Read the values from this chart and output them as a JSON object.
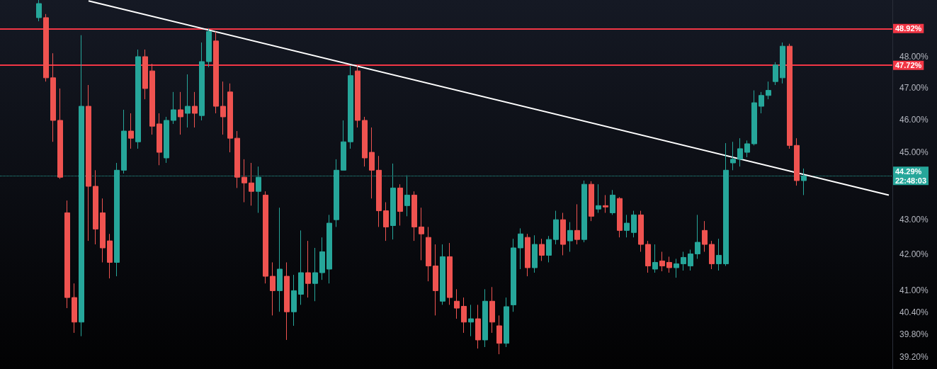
{
  "chart_data": {
    "type": "candlestick",
    "log": true,
    "tick_labels": "y",
    "grid": false,
    "categories": [
      null,
      null,
      null,
      null,
      null,
      null,
      null,
      null,
      null,
      null,
      null,
      null,
      null,
      null,
      null,
      null,
      null,
      null,
      null,
      null,
      null,
      null,
      null,
      null,
      null,
      null,
      null,
      null,
      null,
      null,
      null,
      null,
      null,
      null,
      null,
      null,
      null,
      null,
      null,
      null,
      null,
      null,
      null,
      null,
      null,
      null,
      null,
      null,
      null,
      null,
      null,
      null,
      null,
      null,
      null,
      null,
      null,
      null,
      null,
      null,
      null,
      null,
      null,
      null,
      null,
      null,
      null,
      null,
      null,
      null,
      null,
      null,
      null,
      null,
      null,
      null,
      null,
      null,
      null,
      null,
      null,
      null,
      null,
      null,
      null,
      null,
      null,
      null,
      null,
      null,
      null,
      null,
      null,
      null,
      null,
      null,
      null,
      null,
      null,
      null,
      null,
      null,
      null,
      null,
      null,
      null,
      null,
      null,
      null,
      null,
      null,
      null,
      null,
      null,
      null,
      null,
      null,
      null,
      null,
      null,
      null,
      null,
      null,
      null,
      null,
      null
    ],
    "colors": [
      null,
      null,
      null,
      null,
      null,
      "#26a69a",
      "#ef5350",
      "#ef5350",
      "#ef5350",
      "#ef5350",
      "#ef5350",
      "#26a69a",
      "#ef5350",
      "#ef5350",
      "#ef5350",
      "#ef5350",
      "#26a69a",
      "#26a69a",
      "#ef5350",
      "#26a69a",
      "#ef5350",
      "#ef5350",
      "#ef5350",
      "#26a69a",
      "#26a69a",
      "#ef5350",
      "#26a69a",
      "#ef5350",
      "#26a69a",
      "#26a69a",
      "#ef5350",
      "#ef5350",
      "#ef5350",
      "#ef5350",
      "#ef5350",
      "#ef5350",
      "#26a69a",
      "#ef5350",
      "#ef5350",
      "#26a69a",
      "#ef5350",
      "#26a69a",
      "#26a69a",
      "#ef5350",
      "#26a69a",
      "#26a69a",
      "#26a69a",
      "#26a69a",
      "#26a69a",
      "#26a69a",
      "#ef5350",
      "#ef5350",
      "#ef5350",
      "#ef5350",
      "#ef5350",
      "#26a69a",
      "#ef5350",
      "#26a69a",
      "#ef5350",
      "#ef5350",
      "#ef5350",
      "#ef5350",
      "#26a69a",
      "#ef5350",
      "#ef5350",
      "#ef5350",
      "#26a69a",
      "#ef5350",
      "#26a69a",
      "#ef5350",
      "#ef5350",
      "#26a69a",
      "#26a69a",
      "#26a69a",
      "#ef5350",
      "#26a69a",
      "#ef5350",
      "#26a69a",
      "#26a69a",
      "#ef5350",
      "#26a69a",
      "#ef5350",
      "#26a69a",
      "#ef5350",
      "#26a69a",
      "#ef5350",
      "#26a69a",
      "#ef5350",
      "#26a69a",
      "#26a69a",
      "#ef5350",
      "#ef5350",
      "#26a69a",
      "#ef5350",
      "#ef5350",
      "#26a69a",
      "#26a69a",
      "#26a69a",
      "#26a69a",
      "#ef5350",
      "#ef5350",
      "#26a69a",
      "#26a69a",
      "#26a69a",
      "#26a69a",
      "#26a69a",
      "#26a69a",
      "#26a69a",
      "#26a69a",
      "#26a69a",
      "#26a69a",
      "#ef5350",
      "#ef5350",
      "#26a69a",
      null,
      null,
      null,
      null,
      null,
      null,
      null,
      null,
      null,
      null,
      null,
      null
    ],
    "ohlc": [
      null,
      null,
      null,
      null,
      null,
      [
        49.28,
        49.87,
        49.16,
        49.75
      ],
      [
        49.28,
        49.4,
        47.2,
        47.32
      ],
      [
        47.32,
        48.11,
        45.32,
        45.98
      ],
      [
        45.98,
        46.98,
        44.2,
        44.25
      ],
      [
        43.2,
        43.56,
        40.51,
        40.8
      ],
      [
        40.8,
        41.19,
        39.84,
        40.13
      ],
      [
        40.13,
        48.7,
        39.75,
        46.42
      ],
      [
        46.42,
        47.09,
        42.39,
        43.98
      ],
      [
        43.98,
        44.46,
        42.29,
        42.73
      ],
      [
        43.2,
        43.62,
        41.78,
        42.19
      ],
      [
        42.39,
        42.59,
        41.33,
        41.78
      ],
      [
        41.78,
        44.68,
        41.39,
        44.46
      ],
      [
        44.46,
        46.31,
        44.36,
        45.65
      ],
      [
        45.65,
        46.2,
        45.11,
        45.43
      ],
      [
        45.32,
        48.23,
        45.11,
        48.0
      ],
      [
        48.0,
        48.23,
        46.64,
        46.98
      ],
      [
        47.54,
        47.77,
        45.54,
        45.8
      ],
      [
        45.87,
        46.2,
        44.61,
        45.0
      ],
      [
        44.83,
        46.09,
        44.68,
        45.98
      ],
      [
        45.98,
        46.87,
        45.87,
        46.31
      ],
      [
        46.31,
        46.87,
        45.54,
        46.09
      ],
      [
        46.2,
        47.43,
        45.76,
        46.42
      ],
      [
        46.42,
        46.87,
        45.76,
        46.2
      ],
      [
        46.13,
        48.46,
        45.98,
        47.84
      ],
      [
        47.84,
        48.93,
        47.66,
        48.82
      ],
      [
        48.51,
        48.82,
        46.2,
        46.42
      ],
      [
        46.42,
        47.2,
        45.54,
        46.09
      ],
      [
        46.87,
        47.14,
        45.0,
        45.43
      ],
      [
        45.43,
        45.65,
        43.93,
        44.25
      ],
      [
        44.25,
        44.79,
        43.51,
        44.08
      ],
      [
        44.08,
        44.68,
        43.41,
        43.83
      ],
      [
        43.83,
        44.57,
        43.2,
        44.25
      ],
      [
        43.72,
        43.83,
        41.19,
        41.39
      ],
      [
        41.39,
        41.78,
        40.31,
        40.99
      ],
      [
        40.99,
        43.35,
        40.41,
        41.59
      ],
      [
        41.39,
        41.78,
        39.65,
        40.41
      ],
      [
        40.41,
        41.43,
        40.03,
        40.99
      ],
      [
        40.89,
        42.69,
        40.6,
        41.49
      ],
      [
        41.49,
        42.39,
        40.8,
        41.19
      ],
      [
        41.19,
        42.19,
        40.7,
        41.49
      ],
      [
        41.49,
        42.49,
        41.29,
        42.08
      ],
      [
        41.59,
        43.14,
        41.19,
        42.9
      ],
      [
        43.0,
        44.79,
        42.79,
        44.46
      ],
      [
        44.46,
        45.98,
        44.46,
        45.32
      ],
      [
        45.32,
        47.71,
        45.11,
        47.39
      ],
      [
        47.54,
        47.73,
        45.76,
        45.98
      ],
      [
        45.98,
        46.09,
        44.57,
        44.83
      ],
      [
        45.0,
        45.76,
        43.62,
        44.46
      ],
      [
        44.46,
        44.89,
        42.79,
        43.26
      ],
      [
        43.26,
        43.51,
        42.39,
        42.79
      ],
      [
        42.83,
        44.66,
        42.43,
        43.93
      ],
      [
        43.93,
        44.04,
        42.83,
        43.24
      ],
      [
        43.41,
        44.31,
        43.1,
        43.72
      ],
      [
        43.72,
        43.83,
        42.39,
        42.79
      ],
      [
        42.79,
        43.35,
        41.84,
        42.59
      ],
      [
        42.49,
        42.79,
        41.25,
        41.68
      ],
      [
        41.68,
        42.29,
        40.31,
        40.99
      ],
      [
        40.7,
        42.29,
        40.6,
        41.94
      ],
      [
        41.94,
        42.33,
        40.6,
        40.8
      ],
      [
        40.7,
        41.03,
        40.22,
        40.51
      ],
      [
        40.56,
        40.8,
        39.84,
        40.13
      ],
      [
        40.13,
        40.6,
        39.75,
        40.22
      ],
      [
        40.22,
        40.6,
        39.42,
        39.65
      ],
      [
        39.65,
        41.03,
        39.46,
        40.7
      ],
      [
        40.7,
        41.09,
        39.84,
        40.13
      ],
      [
        40.03,
        40.31,
        39.27,
        39.56
      ],
      [
        39.56,
        40.8,
        39.46,
        40.55
      ],
      [
        40.6,
        42.45,
        40.41,
        42.19
      ],
      [
        42.19,
        42.75,
        41.59,
        42.59
      ],
      [
        42.49,
        42.59,
        41.39,
        41.63
      ],
      [
        41.63,
        42.55,
        41.49,
        42.29
      ],
      [
        42.29,
        42.45,
        41.82,
        41.98
      ],
      [
        41.98,
        42.53,
        41.78,
        42.43
      ],
      [
        42.43,
        43.26,
        42.29,
        43.0
      ],
      [
        43.0,
        43.2,
        41.98,
        42.29
      ],
      [
        42.39,
        42.93,
        42.08,
        42.69
      ],
      [
        42.69,
        43.45,
        42.29,
        42.43
      ],
      [
        42.43,
        44.15,
        42.35,
        44.04
      ],
      [
        44.04,
        44.13,
        42.96,
        43.1
      ],
      [
        43.31,
        44.04,
        43.2,
        43.41
      ],
      [
        43.41,
        43.72,
        43.2,
        43.37
      ],
      [
        43.2,
        43.87,
        43.14,
        43.72
      ],
      [
        43.62,
        43.66,
        42.49,
        42.69
      ],
      [
        42.69,
        43.14,
        42.49,
        42.9
      ],
      [
        42.63,
        43.26,
        42.49,
        43.14
      ],
      [
        43.14,
        43.26,
        42.08,
        42.29
      ],
      [
        42.29,
        42.39,
        41.49,
        41.68
      ],
      [
        41.59,
        42.29,
        41.49,
        41.78
      ],
      [
        41.82,
        42.08,
        41.53,
        41.68
      ],
      [
        41.78,
        41.94,
        41.49,
        41.63
      ],
      [
        41.63,
        41.88,
        41.35,
        41.74
      ],
      [
        41.74,
        42.08,
        41.55,
        41.92
      ],
      [
        41.68,
        42.14,
        41.55,
        42.02
      ],
      [
        42.02,
        43.14,
        41.88,
        42.35
      ],
      [
        42.69,
        42.96,
        42.08,
        42.29
      ],
      [
        42.29,
        42.39,
        41.59,
        41.74
      ],
      [
        41.74,
        42.45,
        41.55,
        41.98
      ],
      [
        41.74,
        45.28,
        41.68,
        44.46
      ],
      [
        44.68,
        45.32,
        44.46,
        44.79
      ],
      [
        44.79,
        45.43,
        44.57,
        45.11
      ],
      [
        45.0,
        45.36,
        44.85,
        45.26
      ],
      [
        45.26,
        46.92,
        45.21,
        46.53
      ],
      [
        46.42,
        46.87,
        46.2,
        46.76
      ],
      [
        46.76,
        47.2,
        46.64,
        46.92
      ],
      [
        47.2,
        47.82,
        47.09,
        47.73
      ],
      [
        47.32,
        48.46,
        47.14,
        48.34
      ],
      [
        48.34,
        48.42,
        45.11,
        45.21
      ],
      [
        45.21,
        45.43,
        44.0,
        44.15
      ],
      [
        44.15,
        44.51,
        43.72,
        44.29
      ],
      null,
      null,
      null,
      null,
      null,
      null,
      null,
      null,
      null,
      null,
      null,
      null
    ],
    "series": [
      {
        "type": "line",
        "color": "#ffffff",
        "values": [
          null,
          null,
          null,
          null,
          null,
          null,
          null,
          null,
          null,
          null,
          null,
          null,
          49.84,
          null,
          null,
          null,
          null,
          null,
          null,
          null,
          null,
          null,
          null,
          null,
          null,
          null,
          null,
          null,
          null,
          null,
          null,
          null,
          null,
          null,
          null,
          null,
          null,
          null,
          null,
          null,
          null,
          null,
          null,
          null,
          null,
          null,
          null,
          null,
          null,
          null,
          null,
          null,
          null,
          null,
          null,
          null,
          null,
          null,
          null,
          null,
          null,
          null,
          null,
          null,
          null,
          null,
          null,
          null,
          null,
          null,
          null,
          null,
          null,
          null,
          null,
          null,
          null,
          null,
          null,
          null,
          null,
          null,
          null,
          null,
          null,
          null,
          null,
          null,
          null,
          null,
          null,
          null,
          null,
          null,
          null,
          null,
          null,
          null,
          null,
          null,
          null,
          null,
          null,
          null,
          null,
          null,
          null,
          null,
          null,
          null,
          null,
          null,
          null,
          null,
          null,
          null,
          null,
          null,
          null,
          null,
          null,
          null,
          null,
          null,
          null,
          43.72
        ]
      }
    ],
    "ylim": [
      38.88,
      49.87
    ],
    "yticks": [
      {
        "value": 39.2,
        "label": "39.20%"
      },
      {
        "value": 39.8,
        "label": "39.80%"
      },
      {
        "value": 40.4,
        "label": "40.40%"
      },
      {
        "value": 41,
        "label": "41.00%"
      },
      {
        "value": 42,
        "label": "42.00%"
      },
      {
        "value": 43,
        "label": "43.00%"
      },
      {
        "value": 45,
        "label": "45.00%"
      },
      {
        "value": 46,
        "label": "46.00%"
      },
      {
        "value": 47,
        "label": "47.00%"
      },
      {
        "value": 48,
        "label": "48.00%"
      }
    ],
    "ref_lines": [
      {
        "axis": "y",
        "value": 48.92,
        "label": "48.92%",
        "color": "#f23645"
      },
      {
        "axis": "y",
        "value": 47.72,
        "label": "47.72%",
        "color": "#f23645"
      },
      {
        "axis": "y",
        "value": 44.29,
        "label": "44.29%",
        "color": "#26a69a",
        "line_style": "dotted"
      }
    ],
    "annotations": [
      "22:48:03"
    ]
  }
}
